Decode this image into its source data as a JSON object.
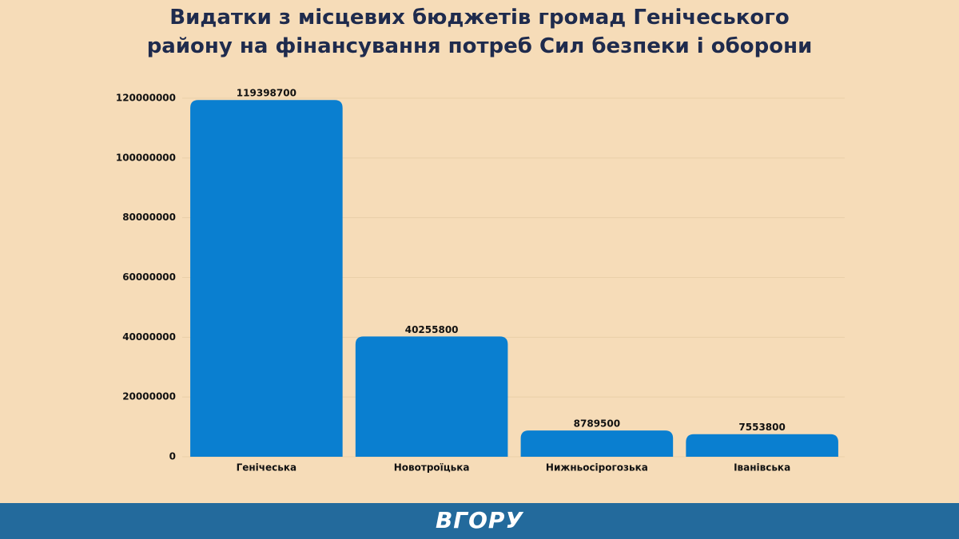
{
  "chart_data": {
    "type": "bar",
    "title": "Видатки з місцевих бюджетів громад Генічеського району на фінансування потреб Сил безпеки і оборони",
    "categories": [
      "Генічеська",
      "Новотроїцька",
      "Нижньосірогозька",
      "Іванівська"
    ],
    "values": [
      119398700,
      40255800,
      8789500,
      7553800
    ],
    "color": "#0a7fd0",
    "ylim": [
      0,
      120000000
    ],
    "yticks": [
      0,
      20000000,
      40000000,
      60000000,
      80000000,
      100000000,
      120000000
    ],
    "grid": true
  },
  "footer": {
    "logo": "ВГОРУ"
  }
}
